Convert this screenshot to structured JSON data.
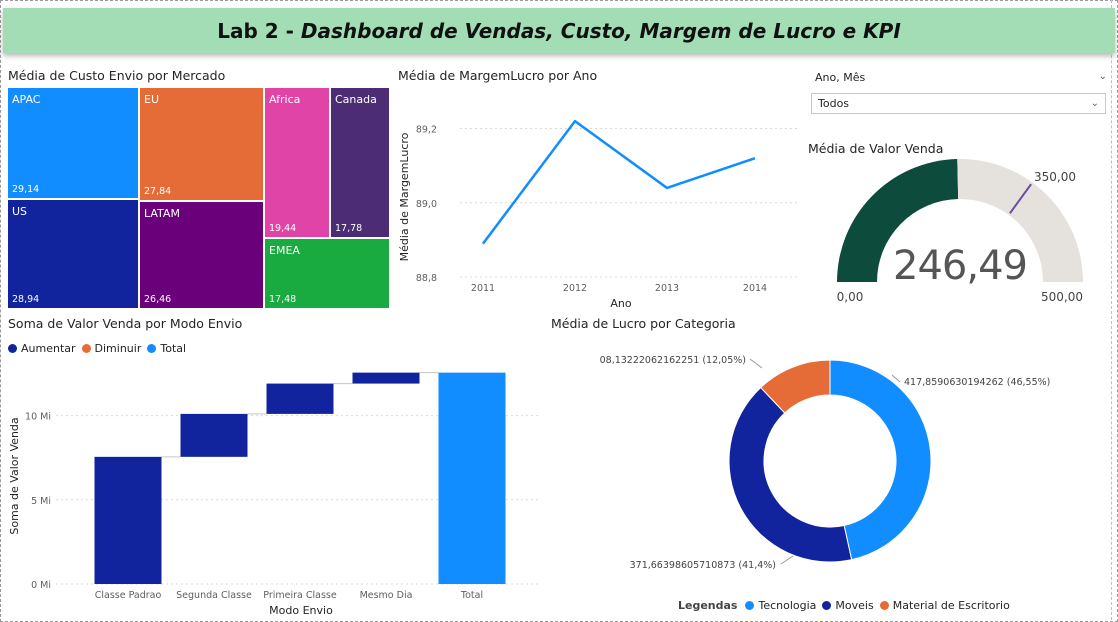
{
  "banner": {
    "prefix": "Lab 2 - ",
    "title": "Dashboard de Vendas, Custo, Margem de Lucro e KPI"
  },
  "colors": {
    "apac": "#118dff",
    "eu": "#e66c37",
    "africa": "#e044a7",
    "canada": "#4b2c75",
    "us": "#12239e",
    "latam": "#6b007b",
    "emea": "#1aab40",
    "line": "#118dff",
    "increase": "#12239e",
    "decrease": "#e66c37",
    "total": "#118dff",
    "gauge_fill": "#0d4b3d",
    "gauge_bg": "#e5e2dd",
    "gauge_target": "#6b4f9e",
    "banner": "#a3ddb5"
  },
  "treemap": {
    "title": "Média de Custo Envio por Mercado",
    "tiles": [
      {
        "name": "APAC",
        "value": "29,14"
      },
      {
        "name": "US",
        "value": "28,94"
      },
      {
        "name": "EU",
        "value": "27,84"
      },
      {
        "name": "LATAM",
        "value": "26,46"
      },
      {
        "name": "Africa",
        "value": "19,44"
      },
      {
        "name": "Canada",
        "value": "17,78"
      },
      {
        "name": "EMEA",
        "value": "17,48"
      }
    ]
  },
  "slicer": {
    "label": "Ano, Mês",
    "value": "Todos"
  },
  "gauge": {
    "title": "Média de Valor Venda",
    "value_label": "246,49",
    "min_label": "0,00",
    "max_label": "500,00",
    "target_label": "350,00",
    "value": 246.49,
    "min": 0,
    "max": 500,
    "target": 350
  },
  "waterfall": {
    "title": "Soma de Valor Venda por Modo Envio",
    "xlabel": "Modo Envio",
    "ylabel": "Soma de Valor Venda"
  },
  "donut": {
    "title": "Média de Lucro por Categoria",
    "legend_title": "Legendas",
    "labels": [
      "417,8590630194262 (46,55%)",
      "371,66398605710873 (41,4%)",
      "108,13222062162251 (12,05%)"
    ]
  },
  "chart_data": [
    {
      "type": "treemap",
      "title": "Média de Custo Envio por Mercado",
      "categories": [
        "APAC",
        "US",
        "EU",
        "LATAM",
        "Africa",
        "Canada",
        "EMEA"
      ],
      "values": [
        29.14,
        28.94,
        27.84,
        26.46,
        19.44,
        17.78,
        17.48
      ]
    },
    {
      "type": "line",
      "title": "Média de MargemLucro por Ano",
      "xlabel": "Ano",
      "ylabel": "Média de MargemLucro",
      "x": [
        2011,
        2012,
        2013,
        2014
      ],
      "x_ticks": [
        "2011",
        "2012",
        "2013",
        "2014"
      ],
      "y": [
        88.89,
        89.22,
        89.04,
        89.12
      ],
      "y_ticks": [
        "88,8",
        "89,0",
        "89,2"
      ],
      "ylim": [
        88.8,
        89.25
      ],
      "grid": true
    },
    {
      "type": "waterfall",
      "title": "Soma de Valor Venda por Modo Envio",
      "xlabel": "Modo Envio",
      "ylabel": "Soma de Valor Venda",
      "legend": [
        "Aumentar",
        "Diminuir",
        "Total"
      ],
      "categories": [
        "Classe Padrao",
        "Segunda Classe",
        "Primeira Classe",
        "Mesmo Dia",
        "Total"
      ],
      "values": [
        7.55,
        2.55,
        1.8,
        0.65,
        12.55
      ],
      "y_ticks": [
        "0 Mi",
        "5 Mi",
        "10 Mi"
      ],
      "ylim": [
        0,
        13.3
      ],
      "unit": "Mi",
      "grid": true
    },
    {
      "type": "pie",
      "title": "Média de Lucro por Categoria",
      "legend_title": "Legendas",
      "categories": [
        "Tecnologia",
        "Moveis",
        "Material de Escritorio"
      ],
      "values": [
        417.8590630194262,
        371.66398605710873,
        108.13222062162251
      ],
      "percent": [
        46.55,
        41.4,
        12.05
      ],
      "donut": true
    }
  ]
}
